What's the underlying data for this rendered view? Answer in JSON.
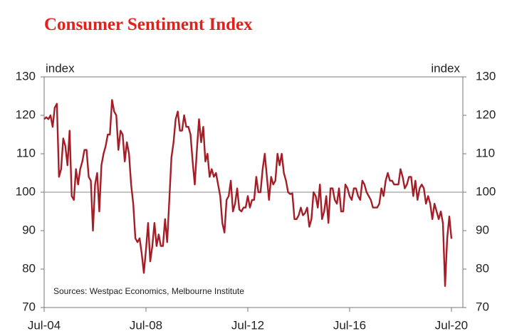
{
  "chart_data": {
    "type": "line",
    "title": "Consumer Sentiment Index",
    "y_label": "index",
    "y2_label": "index",
    "annotation": "Sources: Westpac Economics, Melbourne Institute",
    "categories": [
      "Jul-04",
      null,
      null,
      null,
      null,
      null,
      null,
      null,
      null,
      null,
      null,
      null,
      null,
      null,
      null,
      null,
      null,
      null,
      null,
      null,
      null,
      null,
      null,
      null,
      null,
      null,
      null,
      null,
      null,
      null,
      null,
      null,
      null,
      null,
      null,
      null,
      null,
      null,
      null,
      null,
      null,
      null,
      null,
      null,
      null,
      null,
      null,
      null,
      "Jul-08",
      null,
      null,
      null,
      null,
      null,
      null,
      null,
      null,
      null,
      null,
      null,
      null,
      null,
      null,
      null,
      null,
      null,
      null,
      null,
      null,
      null,
      null,
      null,
      null,
      null,
      null,
      null,
      null,
      null,
      null,
      null,
      null,
      null,
      null,
      null,
      null,
      null,
      null,
      null,
      null,
      null,
      null,
      null,
      null,
      null,
      null,
      null,
      "Jul-12",
      null,
      null,
      null,
      null,
      null,
      null,
      null,
      null,
      null,
      null,
      null,
      null,
      null,
      null,
      null,
      null,
      null,
      null,
      null,
      null,
      null,
      null,
      null,
      null,
      null,
      null,
      null,
      null,
      null,
      null,
      null,
      null,
      null,
      null,
      null,
      null,
      null,
      null,
      null,
      null,
      null,
      null,
      null,
      null,
      null,
      null,
      null,
      "Jul-16",
      null,
      null,
      null,
      null,
      null,
      null,
      null,
      null,
      null,
      null,
      null,
      null,
      null,
      null,
      null,
      null,
      null,
      null,
      null,
      null,
      null,
      null,
      null,
      null,
      null,
      null,
      null,
      null,
      null,
      null,
      null,
      null,
      null,
      null,
      null,
      null,
      null,
      null,
      null,
      null,
      null,
      null,
      null,
      null,
      null,
      null,
      null,
      "Jul-20"
    ],
    "series": [
      {
        "color": "#a51d26",
        "values": [
          119,
          119.5,
          119,
          120,
          117,
          122,
          123,
          104,
          106,
          114,
          112,
          107,
          116,
          99,
          98,
          106,
          102,
          106,
          108,
          111,
          111,
          104,
          103,
          90,
          102,
          105,
          95,
          107,
          110,
          112,
          115,
          115,
          124,
          121,
          120,
          111,
          116,
          115,
          108,
          113,
          110,
          102,
          97,
          88,
          87,
          88,
          84,
          79,
          85,
          92,
          82,
          86,
          92,
          86,
          89,
          86,
          86,
          93,
          87,
          98,
          109,
          113,
          119,
          121,
          116,
          116,
          120,
          117,
          117,
          115,
          108,
          102,
          111,
          119,
          113,
          117,
          108,
          110,
          104,
          106,
          104,
          105,
          102,
          99,
          92,
          89.5,
          98,
          99,
          103,
          95,
          97,
          101,
          95.5,
          95,
          96,
          96,
          99,
          96,
          98,
          98,
          104,
          100,
          100,
          106,
          110,
          104,
          98,
          104,
          102,
          103,
          110,
          107,
          110,
          105,
          103,
          100,
          99.5,
          99.7,
          93,
          93,
          94,
          96,
          94,
          94.6,
          96,
          91,
          93,
          100,
          99,
          96,
          102,
          93,
          95,
          99,
          92,
          101,
          101,
          98,
          97,
          101,
          95,
          95,
          102,
          101,
          99,
          98,
          101,
          101,
          99,
          98,
          103,
          102,
          100,
          99,
          98,
          96,
          96,
          96,
          97,
          101,
          99,
          103,
          105,
          103,
          103,
          102,
          102,
          102,
          106,
          104,
          101,
          102,
          104,
          104,
          99,
          103,
          98,
          101,
          102,
          101,
          97,
          99,
          97,
          93,
          97,
          95,
          93,
          95,
          91.9,
          75.6,
          88,
          93.7,
          87.9
        ]
      }
    ],
    "ylim": [
      70,
      130
    ],
    "yticks": [
      70,
      80,
      90,
      100,
      110,
      120,
      130
    ],
    "y2lim": [
      70,
      130
    ],
    "y2ticks": [
      70,
      80,
      90,
      100,
      110,
      120,
      130
    ],
    "reference_line": 100,
    "grid": false
  }
}
